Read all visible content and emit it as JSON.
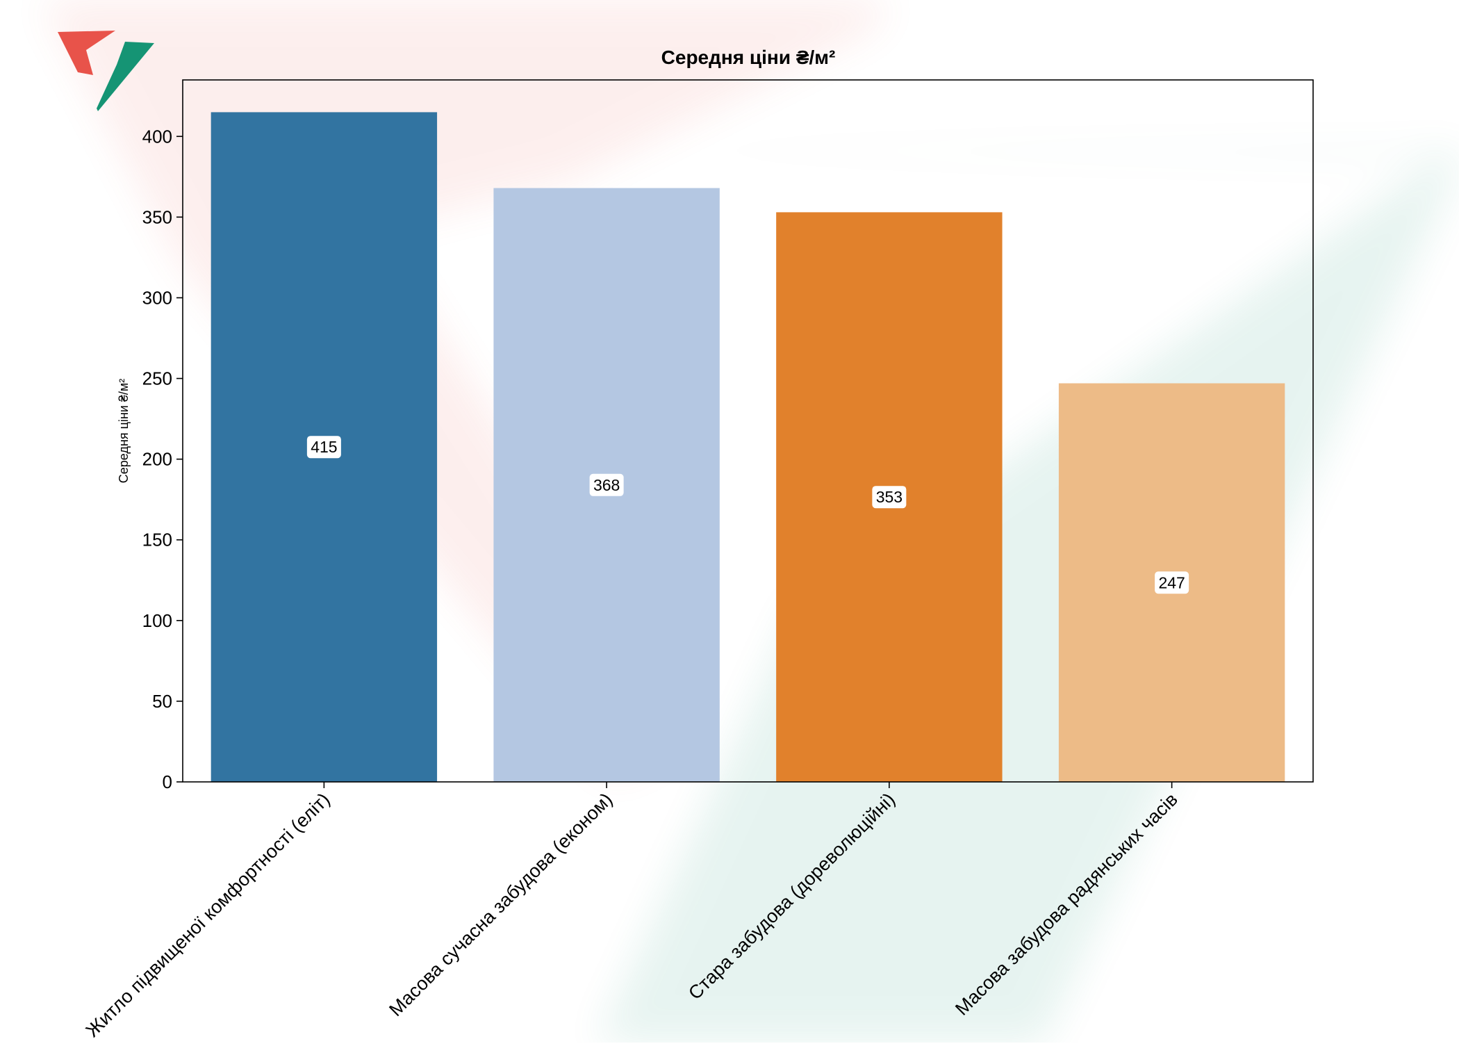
{
  "chart_data": {
    "type": "bar",
    "title": "Середня ціни ₴/м²",
    "xlabel": "",
    "ylabel": "Середня ціни ₴/м²",
    "ylim": [
      0,
      435
    ],
    "yticks": [
      0,
      50,
      100,
      150,
      200,
      250,
      300,
      350,
      400
    ],
    "categories": [
      "Житло підвищеної комфортності (еліт)",
      "Масова сучасна забудова (економ)",
      "Стара забудова (дореволюційні)",
      "Масова забудова радянських часів"
    ],
    "values": [
      415,
      368,
      353,
      247
    ],
    "data_labels": [
      "415",
      "368",
      "353",
      "247"
    ],
    "colors": [
      "#3274a1",
      "#b4c7e2",
      "#e1812c",
      "#edbb87"
    ],
    "grid": false,
    "legend": "none"
  },
  "watermark": {
    "red": "#e8534a",
    "green": "#159474"
  }
}
